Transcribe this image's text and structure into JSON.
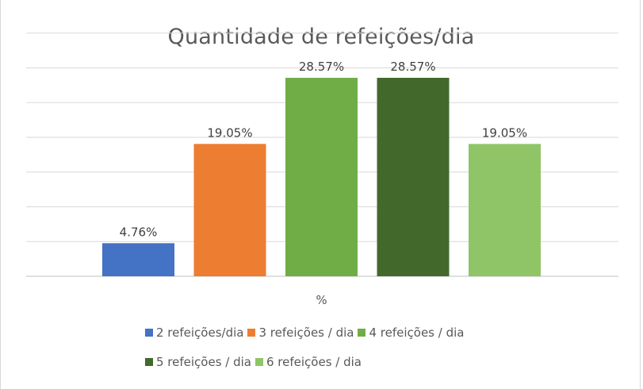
{
  "chart_data": {
    "type": "bar",
    "title": "Quantidade de refeições/dia",
    "category_label": "%",
    "ylim": [
      0,
      35
    ],
    "grid": true,
    "legend_placement": "bottom",
    "series": [
      {
        "name": "2 refeições/dia",
        "value": 4.76,
        "label": "4.76%",
        "color": "#4472C4"
      },
      {
        "name": "3 refeições / dia",
        "value": 19.05,
        "label": "19.05%",
        "color": "#ED7D31"
      },
      {
        "name": "4 refeições / dia",
        "value": 28.57,
        "label": "28.57%",
        "color": "#70AD47"
      },
      {
        "name": "5 refeições / dia",
        "value": 28.57,
        "label": "28.57%",
        "color": "#43682B"
      },
      {
        "name": "6 refeições / dia",
        "value": 19.05,
        "label": "19.05%",
        "color": "#8FC567"
      }
    ]
  }
}
